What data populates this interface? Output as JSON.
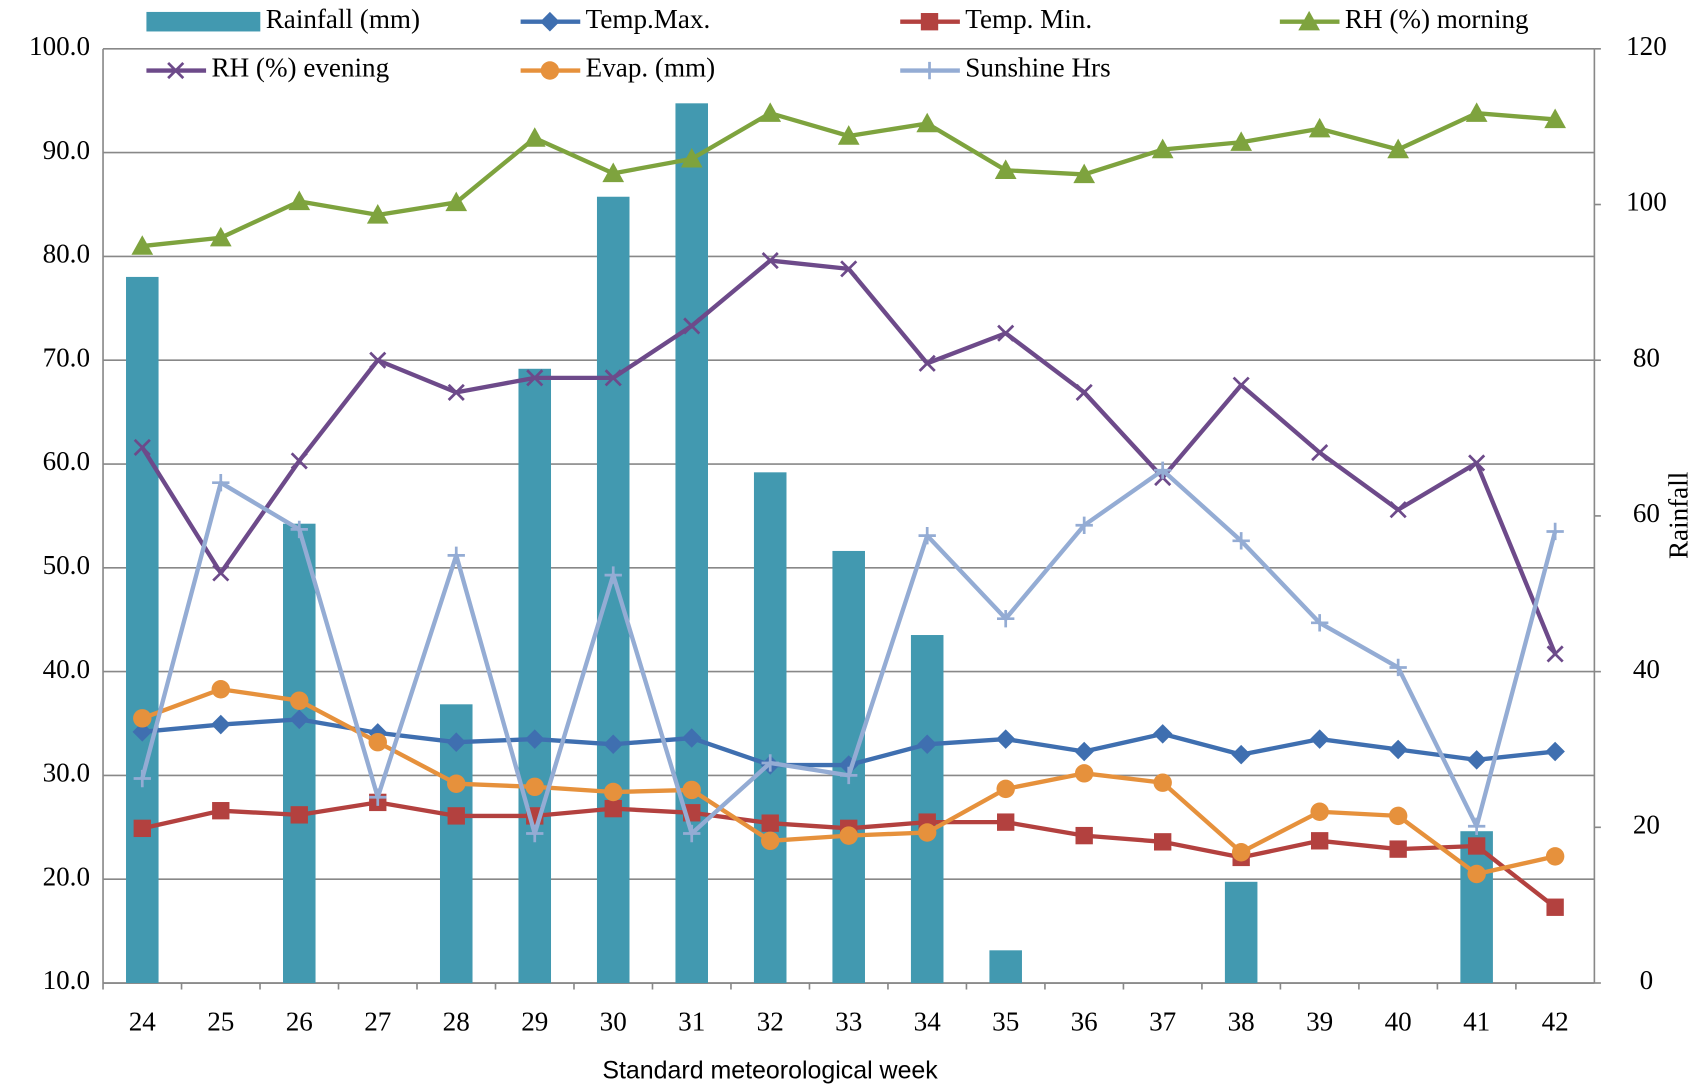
{
  "chart_data": {
    "type": "combo",
    "xlabel": "Standard meteorological week",
    "y2label": "Rainfall",
    "categories": [
      "24",
      "25",
      "26",
      "27",
      "28",
      "29",
      "30",
      "31",
      "32",
      "33",
      "34",
      "35",
      "36",
      "37",
      "38",
      "39",
      "40",
      "41",
      "42"
    ],
    "ylim": [
      10,
      100
    ],
    "yticks": [
      {
        "value": 10,
        "label": "10.0"
      },
      {
        "value": 20,
        "label": "20.0"
      },
      {
        "value": 30,
        "label": "30.0"
      },
      {
        "value": 40,
        "label": "40.0"
      },
      {
        "value": 50,
        "label": "50.0"
      },
      {
        "value": 60,
        "label": "60.0"
      },
      {
        "value": 70,
        "label": "70.0"
      },
      {
        "value": 80,
        "label": "80.0"
      },
      {
        "value": 90,
        "label": "90.0"
      },
      {
        "value": 100,
        "label": "100.0"
      }
    ],
    "y2lim": [
      0,
      120
    ],
    "y2ticks": [
      0,
      20,
      40,
      60,
      80,
      100,
      120
    ],
    "grid": true,
    "series": [
      {
        "name": "Rainfall (mm)",
        "type": "bar",
        "axis": "y2",
        "color": "#4299b0",
        "values": [
          90.7,
          0,
          59.0,
          0,
          35.8,
          78.9,
          101.0,
          113.0,
          65.6,
          55.5,
          44.7,
          4.2,
          0,
          0,
          13.0,
          0,
          0,
          19.5,
          0
        ]
      },
      {
        "name": "Temp.Max.",
        "type": "line",
        "marker": "diamond",
        "color": "#3f6fb0",
        "values": [
          34.2,
          34.9,
          35.4,
          34.1,
          33.2,
          33.5,
          33.0,
          33.6,
          31.0,
          31.0,
          33.0,
          33.5,
          32.3,
          34.0,
          32.0,
          33.5,
          32.5,
          31.5,
          32.3
        ]
      },
      {
        "name": "Temp. Min.",
        "type": "line",
        "marker": "square",
        "color": "#b3413f",
        "values": [
          24.9,
          26.6,
          26.2,
          27.4,
          26.1,
          26.1,
          26.8,
          26.4,
          25.4,
          24.9,
          25.5,
          25.5,
          24.2,
          23.6,
          22.1,
          23.7,
          22.9,
          23.2,
          17.3
        ]
      },
      {
        "name": "RH (%) morning",
        "type": "line",
        "marker": "triangle",
        "color": "#7ea33e",
        "values": [
          81.0,
          81.8,
          85.3,
          84.0,
          85.2,
          91.4,
          88.0,
          89.4,
          93.8,
          91.6,
          92.8,
          88.3,
          87.9,
          90.3,
          91.0,
          92.3,
          90.3,
          93.8,
          93.2
        ]
      },
      {
        "name": "RH (%) evening",
        "type": "line",
        "marker": "x",
        "color": "#6d4a8a",
        "values": [
          61.6,
          49.5,
          60.3,
          70.0,
          66.9,
          68.3,
          68.3,
          73.3,
          79.6,
          78.8,
          69.7,
          72.6,
          66.9,
          58.7,
          67.6,
          61.1,
          55.6,
          60.1,
          41.7
        ]
      },
      {
        "name": "Evap. (mm)",
        "type": "line",
        "marker": "circle",
        "color": "#e6913c",
        "values": [
          35.5,
          38.3,
          37.2,
          33.2,
          29.2,
          28.9,
          28.4,
          28.6,
          23.7,
          24.2,
          24.5,
          28.7,
          30.2,
          29.3,
          22.6,
          26.5,
          26.1,
          20.5,
          22.2
        ]
      },
      {
        "name": "Sunshine Hrs",
        "type": "line",
        "marker": "plus",
        "color": "#94acd4",
        "values": [
          29.7,
          58.2,
          53.7,
          27.9,
          51.2,
          24.4,
          49.3,
          24.4,
          31.2,
          30.0,
          53.1,
          45.1,
          54.1,
          59.4,
          52.6,
          44.7,
          40.4,
          25.1,
          53.5
        ]
      }
    ]
  }
}
